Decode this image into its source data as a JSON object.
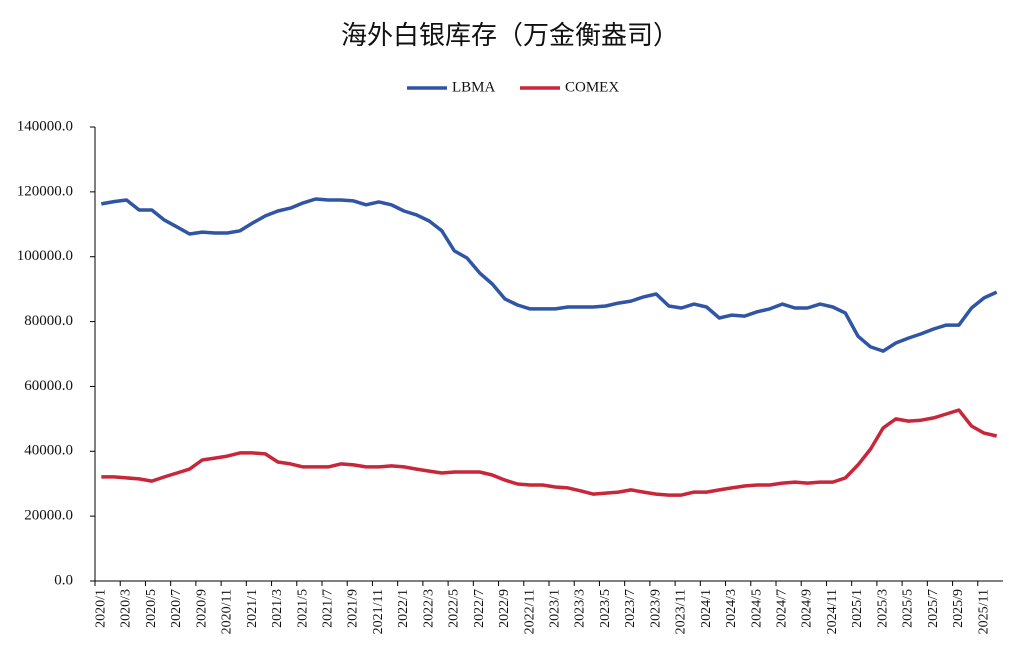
{
  "chart_data": {
    "type": "line",
    "title": "海外白银库存（万金衡盎司）",
    "categories": [
      "2020/1",
      null,
      "2020/3",
      null,
      "2020/5",
      null,
      "2020/7",
      null,
      "2020/9",
      null,
      "2020/11",
      null,
      "2021/1",
      null,
      "2021/3",
      null,
      "2021/5",
      null,
      "2021/7",
      null,
      "2021/9",
      null,
      "2021/11",
      null,
      "2022/1",
      null,
      "2022/3",
      null,
      "2022/5",
      null,
      "2022/7",
      null,
      "2022/9",
      null,
      "2022/11",
      null,
      "2023/1",
      null,
      "2023/3",
      null,
      "2023/5",
      null,
      "2023/7",
      null,
      "2023/9",
      null,
      "2023/11",
      null,
      "2024/1",
      null,
      "2024/3",
      null,
      "2024/5",
      null,
      "2024/7",
      null,
      "2024/9",
      null,
      "2024/11",
      null,
      "2025/1",
      null,
      "2025/3",
      null,
      "2025/5",
      null,
      "2025/7",
      null,
      "2025/9",
      null,
      "2025/11",
      null
    ],
    "series": [
      {
        "name": "LBMA",
        "color": "#2f55a4",
        "values": [
          116300,
          117000,
          117500,
          114400,
          114400,
          111300,
          109200,
          107000,
          107600,
          107300,
          107300,
          108000,
          110400,
          112600,
          114100,
          115000,
          116600,
          117800,
          117500,
          117500,
          117200,
          116000,
          116900,
          116000,
          114100,
          112900,
          111000,
          108000,
          101800,
          99600,
          95000,
          91600,
          87000,
          85100,
          83900,
          83900,
          83900,
          84500,
          84500,
          84500,
          84800,
          85700,
          86300,
          87600,
          88500,
          84800,
          84200,
          85400,
          84500,
          81100,
          82000,
          81700,
          83000,
          83900,
          85400,
          84200,
          84200,
          85400,
          84500,
          82600,
          75500,
          72200,
          70900,
          73400,
          74900,
          76200,
          77700,
          78900,
          78900,
          84200,
          87300,
          89100
        ]
      },
      {
        "name": "COMEX",
        "color": "#c8273a",
        "values": [
          32100,
          32100,
          31800,
          31500,
          30800,
          32100,
          33300,
          34500,
          37300,
          37900,
          38500,
          39500,
          39500,
          39200,
          36700,
          36100,
          35200,
          35200,
          35200,
          36100,
          35800,
          35200,
          35200,
          35500,
          35200,
          34500,
          33900,
          33300,
          33600,
          33600,
          33600,
          32700,
          31100,
          29900,
          29600,
          29600,
          29000,
          28700,
          27800,
          26800,
          27100,
          27400,
          28100,
          27400,
          26800,
          26500,
          26500,
          27400,
          27400,
          28100,
          28700,
          29300,
          29600,
          29600,
          30200,
          30500,
          30200,
          30500,
          30500,
          31800,
          35800,
          40700,
          47200,
          50000,
          49300,
          49600,
          50300,
          51500,
          52700,
          47800,
          45600,
          44700
        ]
      }
    ],
    "ylim": [
      0,
      140000
    ],
    "yticks": [
      {
        "value": 0,
        "label": "0.0"
      },
      {
        "value": 20000,
        "label": "20000.0"
      },
      {
        "value": 40000,
        "label": "40000.0"
      },
      {
        "value": 60000,
        "label": "60000.0"
      },
      {
        "value": 80000,
        "label": "80000.0"
      },
      {
        "value": 100000,
        "label": "100000.0"
      },
      {
        "value": 120000,
        "label": "120000.0"
      },
      {
        "value": 140000,
        "label": "140000.0"
      }
    ],
    "grid": false,
    "legend": "top"
  }
}
